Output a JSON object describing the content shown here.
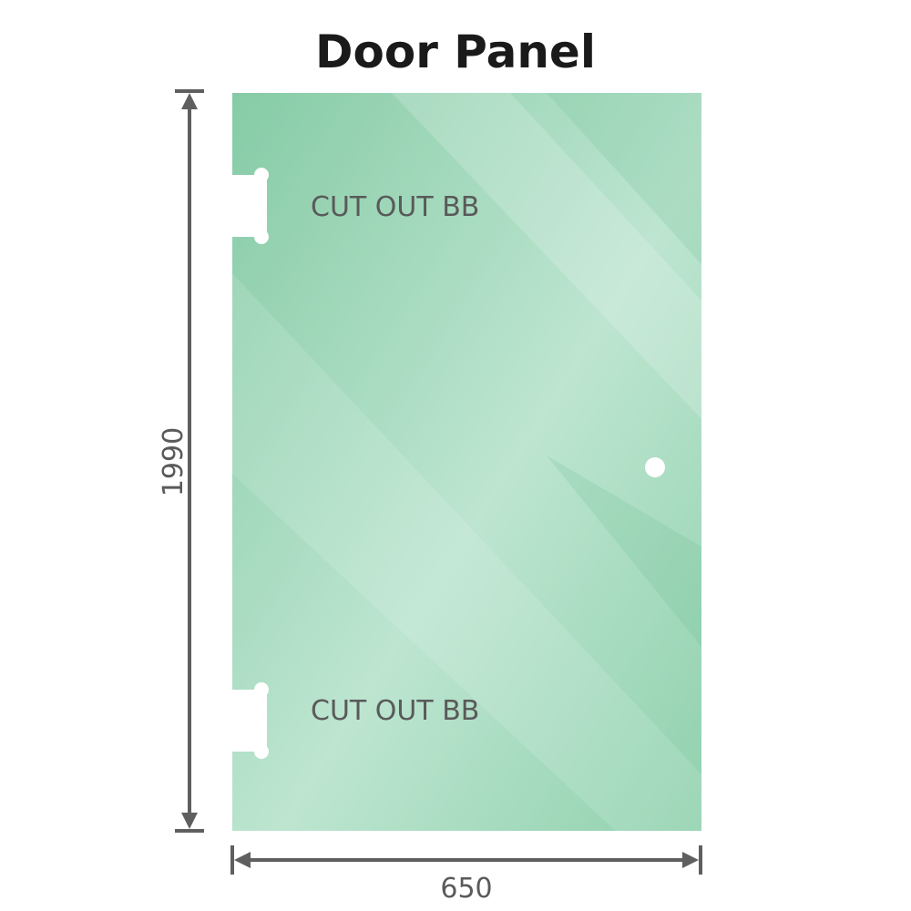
{
  "title": "Door Panel",
  "dimensions": {
    "height": "1990",
    "width": "650"
  },
  "cutouts": [
    {
      "label": "CUT OUT BB"
    },
    {
      "label": "CUT OUT BB"
    }
  ],
  "colors": {
    "glass": "#8fd0ad",
    "glass_light": "#bfe6d2",
    "dimension_line": "#5f5f5f",
    "text": "#555555"
  }
}
